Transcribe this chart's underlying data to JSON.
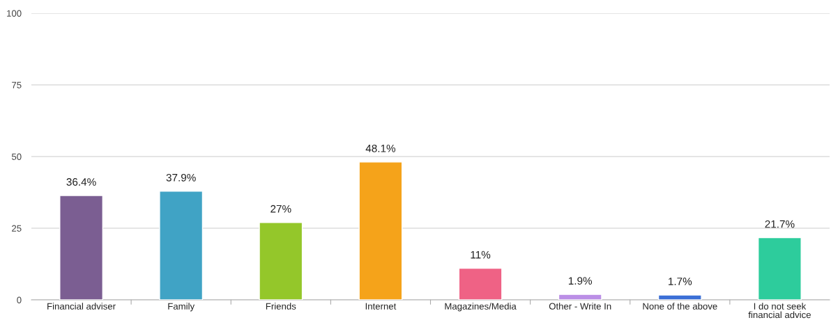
{
  "chart_data": {
    "type": "bar",
    "categories": [
      "Financial adviser",
      "Family",
      "Friends",
      "Internet",
      "Magazines/Media",
      "Other - Write In",
      "None of the above",
      "I do not seek financial advice"
    ],
    "values": [
      36.4,
      37.9,
      27,
      48.1,
      11,
      1.9,
      1.7,
      21.7
    ],
    "value_labels": [
      "36.4%",
      "37.9%",
      "27%",
      "48.1%",
      "11%",
      "1.9%",
      "1.7%",
      "21.7%"
    ],
    "colors": [
      "#7b5e92",
      "#40a3c5",
      "#94c72a",
      "#f5a31a",
      "#ef6285",
      "#bb8fe6",
      "#3b6fd6",
      "#2dcc9c"
    ],
    "ylim": [
      0,
      100
    ],
    "yticks": [
      0,
      25,
      50,
      75,
      100
    ],
    "grid": "y",
    "legend": false
  }
}
